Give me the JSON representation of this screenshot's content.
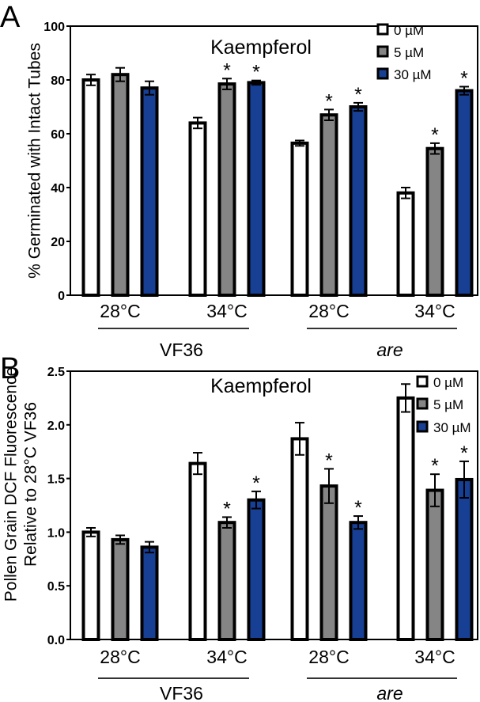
{
  "colors": {
    "0 µM": "#ffffff",
    "5 µM": "#858585",
    "30 µM": "#173f94",
    "stroke": "#000000"
  },
  "chart_data": [
    {
      "panel": "A",
      "type": "bar",
      "title": "Kaempferol",
      "ylabel": "% Germinated with Intact Tubes",
      "ylim": [
        0,
        100
      ],
      "yticks": [
        0,
        20,
        40,
        60,
        80,
        100
      ],
      "ytick_labels": [
        "0",
        "20",
        "40",
        "60",
        "80",
        "100"
      ],
      "categories": [
        "28°C",
        "34°C",
        "28°C",
        "34°C"
      ],
      "genotypes": [
        {
          "label": "VF36",
          "italic": false
        },
        {
          "label": "are",
          "italic": true
        }
      ],
      "legend_position": "top-right",
      "series": [
        {
          "name": "0 µM",
          "values": [
            80,
            64,
            56.5,
            38
          ],
          "errors": [
            2,
            2,
            1,
            2
          ],
          "significant": [
            false,
            false,
            false,
            false
          ]
        },
        {
          "name": "5 µM",
          "values": [
            82,
            78.5,
            67,
            54.5
          ],
          "errors": [
            2.5,
            2,
            2,
            2
          ],
          "significant": [
            false,
            true,
            true,
            true
          ]
        },
        {
          "name": "30 µM",
          "values": [
            77,
            79,
            70,
            76
          ],
          "errors": [
            2.5,
            0.8,
            1.5,
            1.5
          ],
          "significant": [
            false,
            true,
            true,
            true
          ]
        }
      ],
      "significance_marker": "*"
    },
    {
      "panel": "B",
      "type": "bar",
      "title": "Kaempferol",
      "ylabel": [
        "Pollen Grain  DCF Fluorescence",
        "Relative to 28°C VF36"
      ],
      "ylim": [
        0,
        2.5
      ],
      "yticks": [
        0,
        0.5,
        1,
        1.5,
        2,
        2.5
      ],
      "ytick_labels": [
        "0.0",
        "0.5",
        "1.0",
        "1.5",
        "2.0",
        "2.5"
      ],
      "categories": [
        "28°C",
        "34°C",
        "28°C",
        "34°C"
      ],
      "genotypes": [
        {
          "label": "VF36",
          "italic": false
        },
        {
          "label": "are",
          "italic": true
        }
      ],
      "legend_position": "top-right",
      "series": [
        {
          "name": "0 µM",
          "values": [
            1.0,
            1.64,
            1.87,
            2.25
          ],
          "errors": [
            0.04,
            0.1,
            0.15,
            0.13
          ],
          "significant": [
            false,
            false,
            false,
            false
          ]
        },
        {
          "name": "5 µM",
          "values": [
            0.93,
            1.09,
            1.43,
            1.39
          ],
          "errors": [
            0.04,
            0.05,
            0.16,
            0.15
          ],
          "significant": [
            false,
            true,
            true,
            true
          ]
        },
        {
          "name": "30 µM",
          "values": [
            0.86,
            1.3,
            1.09,
            1.49
          ],
          "errors": [
            0.05,
            0.08,
            0.06,
            0.17
          ],
          "significant": [
            false,
            true,
            true,
            true
          ]
        }
      ],
      "significance_marker": "*"
    }
  ]
}
